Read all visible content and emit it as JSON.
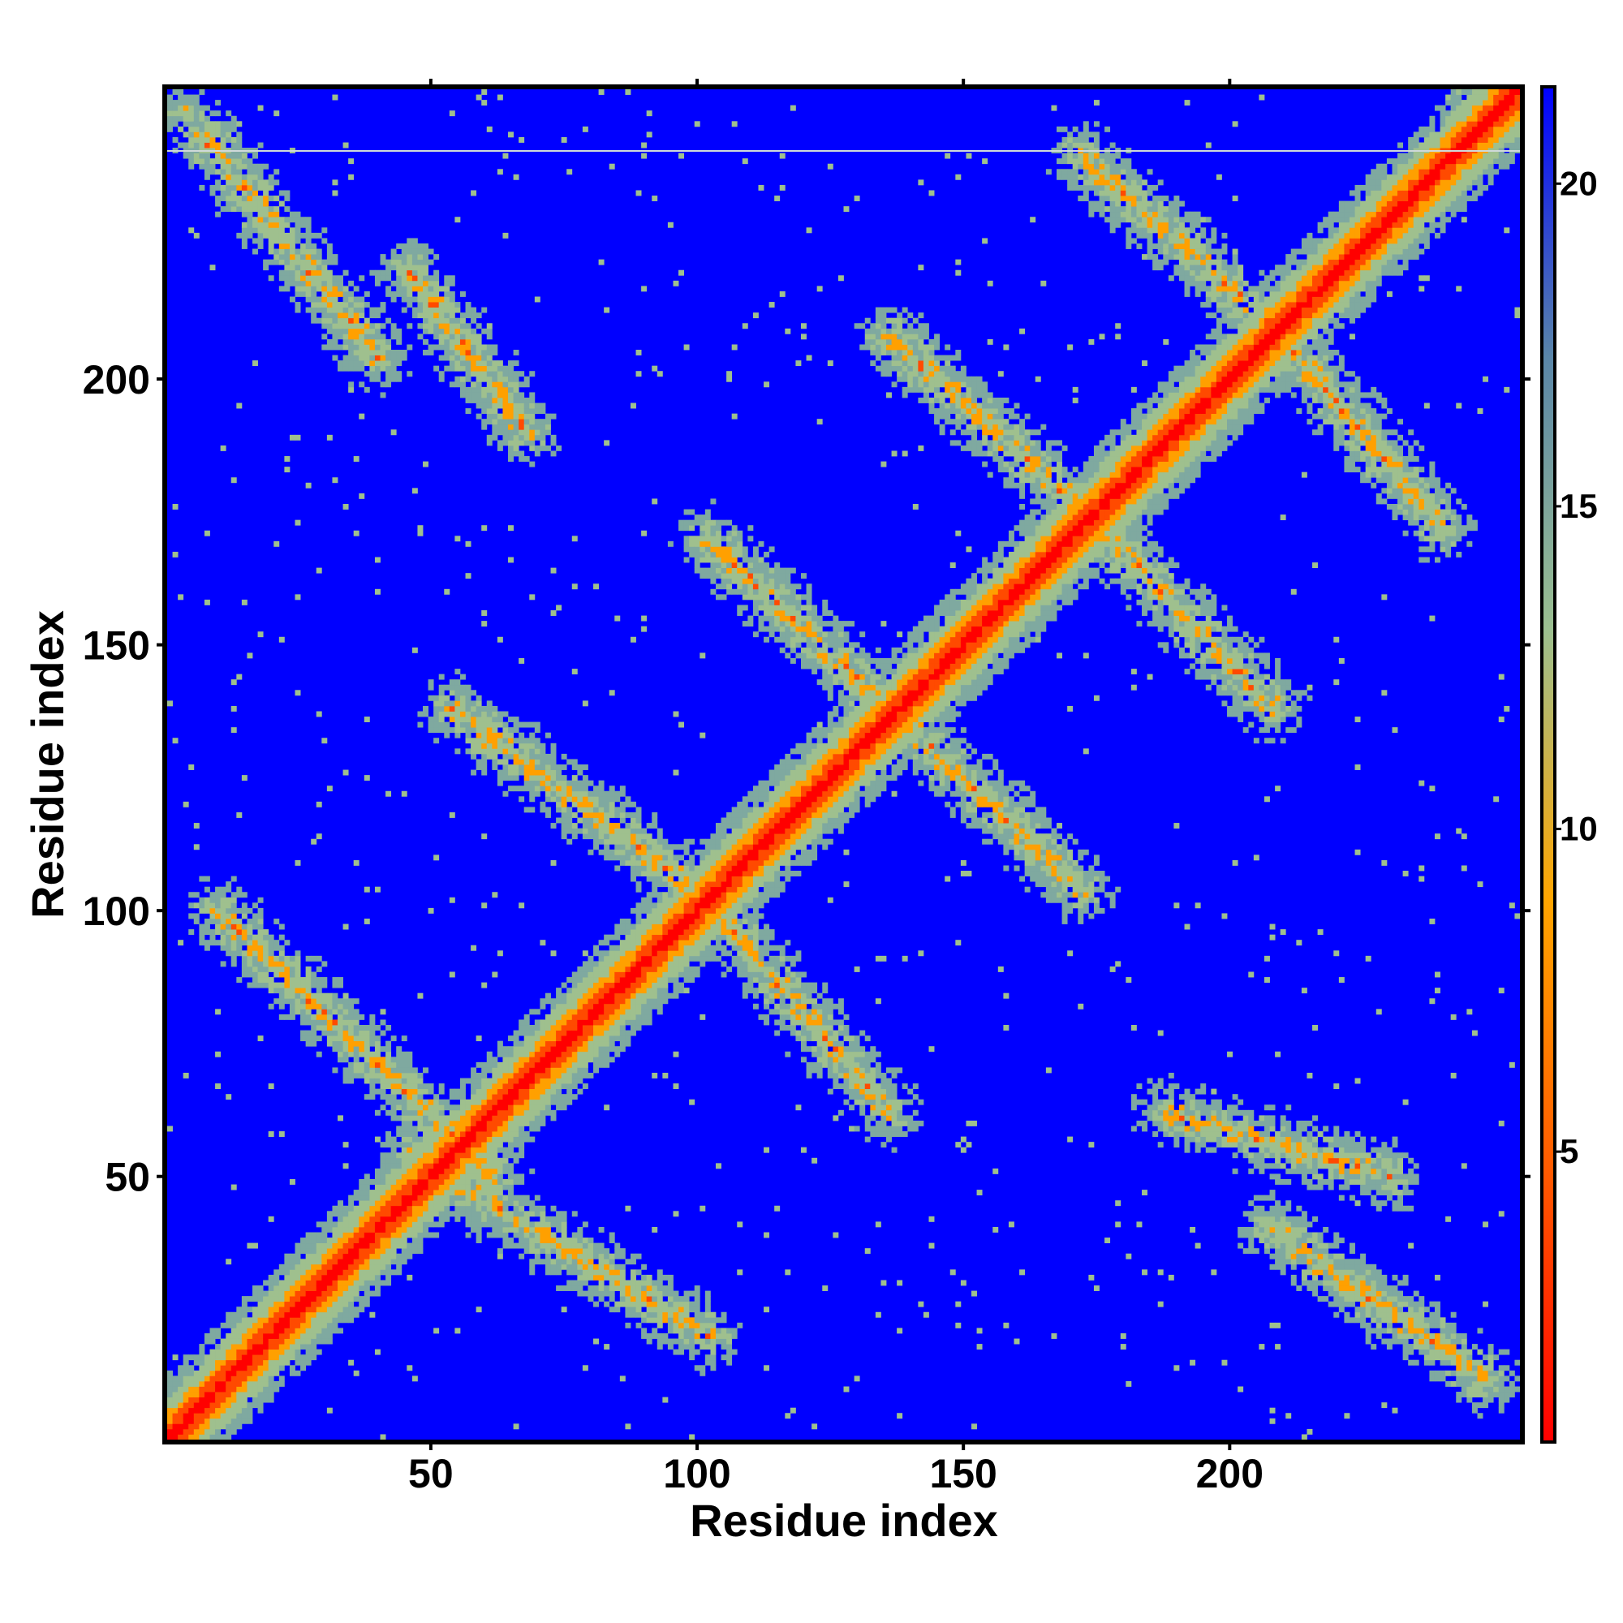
{
  "chart_data": {
    "type": "heatmap",
    "title": "",
    "xlabel": "Residue index",
    "ylabel": "Residue index",
    "n_residues": 254,
    "xlim": [
      1,
      254
    ],
    "ylim": [
      1,
      254
    ],
    "x_ticks": [
      50,
      100,
      150,
      200
    ],
    "y_ticks": [
      50,
      100,
      150,
      200
    ],
    "colorbar": {
      "ticks": [
        5,
        10,
        15,
        20
      ],
      "range": [
        0.5,
        21.5
      ],
      "colors": [
        "#ff0000",
        "#ff5a00",
        "#ffa500",
        "#9bbf90",
        "#5a86a8",
        "#0000ff"
      ]
    },
    "background_color": "#0000ff",
    "diagonal_color": "#ff0000",
    "contact_bands": [
      {
        "from": [
          20,
          20
        ],
        "to": [
          100,
          100
        ],
        "kind": "main-diagonal"
      },
      {
        "from": [
          10,
          100
        ],
        "to": [
          62,
          50
        ],
        "kind": "antiparallel"
      },
      {
        "from": [
          46,
          54
        ],
        "to": [
          102,
          20
        ],
        "kind": "antiparallel"
      },
      {
        "from": [
          54,
          138
        ],
        "to": [
          102,
          102
        ],
        "kind": "antiparallel"
      },
      {
        "from": [
          102,
          102
        ],
        "to": [
          136,
          62
        ],
        "kind": "antiparallel"
      },
      {
        "from": [
          102,
          170
        ],
        "to": [
          136,
          138
        ],
        "kind": "antiparallel"
      },
      {
        "from": [
          136,
          138
        ],
        "to": [
          172,
          104
        ],
        "kind": "antiparallel"
      },
      {
        "from": [
          136,
          208
        ],
        "to": [
          174,
          174
        ],
        "kind": "antiparallel"
      },
      {
        "from": [
          174,
          174
        ],
        "to": [
          208,
          138
        ],
        "kind": "antiparallel"
      },
      {
        "from": [
          172,
          242
        ],
        "to": [
          208,
          210
        ],
        "kind": "antiparallel"
      },
      {
        "from": [
          208,
          210
        ],
        "to": [
          240,
          172
        ],
        "kind": "antiparallel"
      },
      {
        "from": [
          208,
          40
        ],
        "to": [
          248,
          12
        ],
        "kind": "antiparallel"
      },
      {
        "from": [
          4,
          250
        ],
        "to": [
          40,
          204
        ],
        "kind": "antiparallel"
      },
      {
        "from": [
          46,
          220
        ],
        "to": [
          68,
          190
        ],
        "kind": "blob"
      },
      {
        "from": [
          188,
          62
        ],
        "to": [
          230,
          50
        ],
        "kind": "blob"
      }
    ]
  }
}
